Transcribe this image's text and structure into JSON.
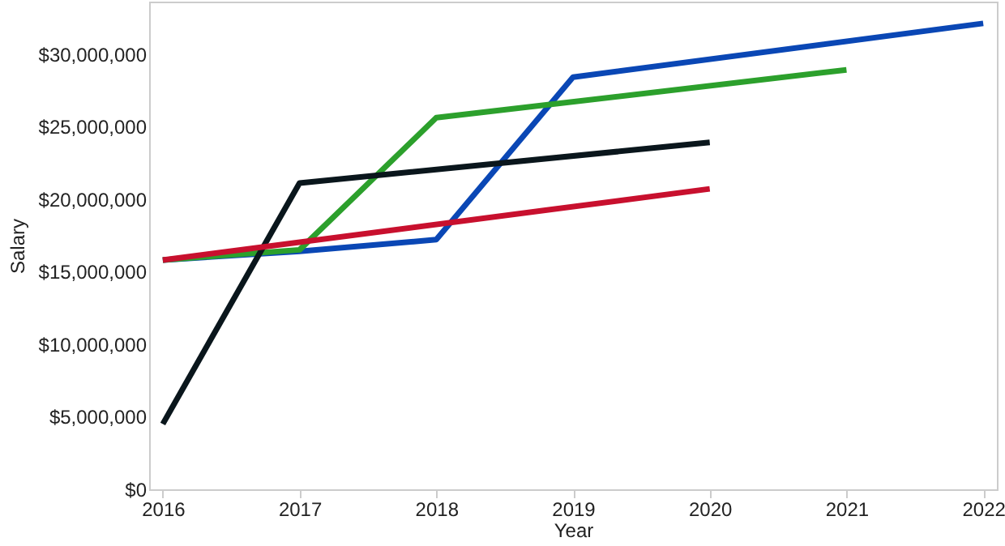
{
  "chart_data": {
    "type": "line",
    "xlabel": "Year",
    "ylabel": "Salary",
    "series": [
      {
        "color": "#0a47b5",
        "x": [
          2016,
          2017,
          2018,
          2019,
          2022
        ],
        "values": [
          15800000,
          16400000,
          17200000,
          28400000,
          32100000
        ]
      },
      {
        "color": "#2ca02c",
        "x": [
          2016,
          2017,
          2018,
          2021
        ],
        "values": [
          15800000,
          16500000,
          25600000,
          28900000
        ]
      },
      {
        "color": "#0a161c",
        "x": [
          2016,
          2017,
          2020
        ],
        "values": [
          4500000,
          21100000,
          23900000
        ]
      },
      {
        "color": "#c8102e",
        "x": [
          2016,
          2020
        ],
        "values": [
          15800000,
          20700000
        ]
      }
    ],
    "xlim": [
      2015.9,
      2022.1
    ],
    "xticks": [
      2016,
      2017,
      2018,
      2019,
      2020,
      2021,
      2022
    ],
    "ylim": [
      0,
      33600000
    ],
    "yticks": [
      {
        "value": 0,
        "label": "$0"
      },
      {
        "value": 5000000,
        "label": "$5,000,000"
      },
      {
        "value": 10000000,
        "label": "$10,000,000"
      },
      {
        "value": 15000000,
        "label": "$15,000,000"
      },
      {
        "value": 20000000,
        "label": "$20,000,000"
      },
      {
        "value": 25000000,
        "label": "$25,000,000"
      },
      {
        "value": 30000000,
        "label": "$30,000,000"
      }
    ],
    "grid": false,
    "legend": false,
    "line_style": "solid",
    "marker": "none"
  }
}
